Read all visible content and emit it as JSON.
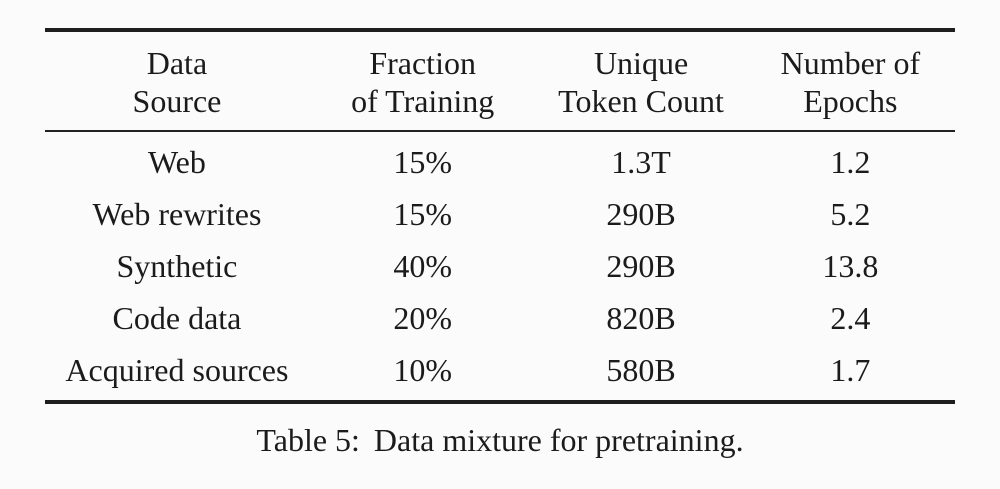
{
  "table": {
    "columns": [
      {
        "line1": "Data",
        "line2": "Source"
      },
      {
        "line1": "Fraction",
        "line2": "of Training"
      },
      {
        "line1": "Unique",
        "line2": "Token Count"
      },
      {
        "line1": "Number of",
        "line2": "Epochs"
      }
    ],
    "rows": [
      {
        "source": "Web",
        "fraction": "15%",
        "tokens": "1.3T",
        "epochs": "1.2"
      },
      {
        "source": "Web rewrites",
        "fraction": "15%",
        "tokens": "290B",
        "epochs": "5.2"
      },
      {
        "source": "Synthetic",
        "fraction": "40%",
        "tokens": "290B",
        "epochs": "13.8"
      },
      {
        "source": "Code data",
        "fraction": "20%",
        "tokens": "820B",
        "epochs": "2.4"
      },
      {
        "source": "Acquired sources",
        "fraction": "10%",
        "tokens": "580B",
        "epochs": "1.7"
      }
    ]
  },
  "caption": {
    "label": "Table 5:",
    "text": "Data mixture for pretraining."
  },
  "colors": {
    "rule": "#1e1e1e",
    "text": "#1b1b1b",
    "background": "#fbfbfb"
  },
  "chart_data": {
    "type": "table",
    "title": "Table 5: Data mixture for pretraining.",
    "columns": [
      "Data Source",
      "Fraction of Training",
      "Unique Token Count",
      "Number of Epochs"
    ],
    "rows": [
      [
        "Web",
        "15%",
        "1.3T",
        "1.2"
      ],
      [
        "Web rewrites",
        "15%",
        "290B",
        "5.2"
      ],
      [
        "Synthetic",
        "40%",
        "290B",
        "13.8"
      ],
      [
        "Code data",
        "20%",
        "820B",
        "2.4"
      ],
      [
        "Acquired sources",
        "10%",
        "580B",
        "1.7"
      ]
    ]
  }
}
